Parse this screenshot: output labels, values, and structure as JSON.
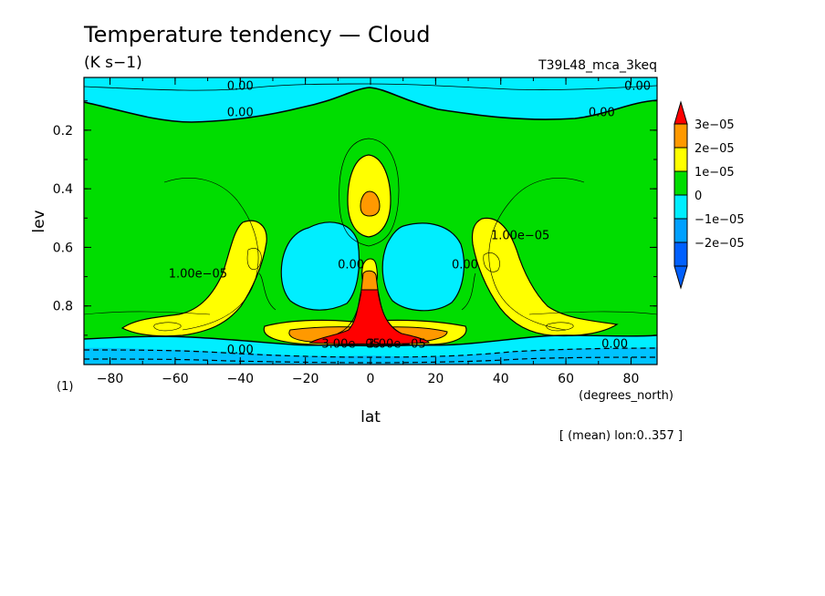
{
  "chart_data": {
    "type": "contour",
    "title": "Temperature tendency — Cloud",
    "units": "(K s−1)",
    "experiment": "T39L48_mca_3keq",
    "ylabel": "lev",
    "xlabel": "lat",
    "x_units": "(degrees_north)",
    "y_units": "(1)",
    "footnote": "[ (mean) lon:0..357 ]",
    "xlim": [
      -88,
      88
    ],
    "ylim": [
      1.0,
      0.02
    ],
    "x_ticks": [
      -80,
      -60,
      -40,
      -20,
      0,
      20,
      40,
      60,
      80
    ],
    "x_tick_labels": [
      "−80",
      "−60",
      "−40",
      "−20",
      "0",
      "20",
      "40",
      "60",
      "80"
    ],
    "y_ticks": [
      0.2,
      0.4,
      0.6,
      0.8
    ],
    "y_tick_labels": [
      "0.2",
      "0.4",
      "0.6",
      "0.8"
    ],
    "colorbar": {
      "levels": [
        {
          "label": "3e−05",
          "color": "#ff9900"
        },
        {
          "label": "2e−05",
          "color": "#ffff00"
        },
        {
          "label": "1e−05",
          "color": "#00dd00"
        },
        {
          "label": "0",
          "color": "#00eeff"
        },
        {
          "label": "−1e−05",
          "color": "#00a0ff"
        },
        {
          "label": "−2e−05",
          "color": "#0060ff"
        }
      ],
      "top_color": "#ff0000",
      "bottom_color": "#0060ff"
    },
    "contour_labels": [
      {
        "text": "0.00",
        "lat": -40,
        "lev": 0.05
      },
      {
        "text": "0.00",
        "lat": 82,
        "lev": 0.05
      },
      {
        "text": "0.00",
        "lat": -40,
        "lev": 0.14
      },
      {
        "text": "0.00",
        "lat": 71,
        "lev": 0.14
      },
      {
        "text": "1.00e−05",
        "lat": -53,
        "lev": 0.69
      },
      {
        "text": "1.00e−05",
        "lat": 46,
        "lev": 0.56
      },
      {
        "text": "0.00",
        "lat": -6,
        "lev": 0.66
      },
      {
        "text": "0.00",
        "lat": 29,
        "lev": 0.66
      },
      {
        "text": "0.00",
        "lat": -40,
        "lev": 0.95
      },
      {
        "text": "0.00",
        "lat": 75,
        "lev": 0.93
      },
      {
        "text": "3.00e−05",
        "lat": -6,
        "lev": 0.93
      },
      {
        "text": "3.00e−05",
        "lat": 8,
        "lev": 0.93
      }
    ],
    "regions": {
      "negative_upper": {
        "lev_range": [
          0.02,
          0.12
        ],
        "value_sign": "negative"
      },
      "negative_mid_left": {
        "lat_range": [
          -30,
          -5
        ],
        "lev_range": [
          0.5,
          0.8
        ],
        "value_sign": "negative"
      },
      "negative_mid_right": {
        "lat_range": [
          5,
          30
        ],
        "lev_range": [
          0.5,
          0.8
        ],
        "value_sign": "negative"
      },
      "negative_surface": {
        "lev_range": [
          0.9,
          1.0
        ],
        "value_sign": "negative"
      },
      "positive_equatorial_max": {
        "lat": 0,
        "lev": 0.93,
        "value": "≥3e−05"
      }
    }
  }
}
